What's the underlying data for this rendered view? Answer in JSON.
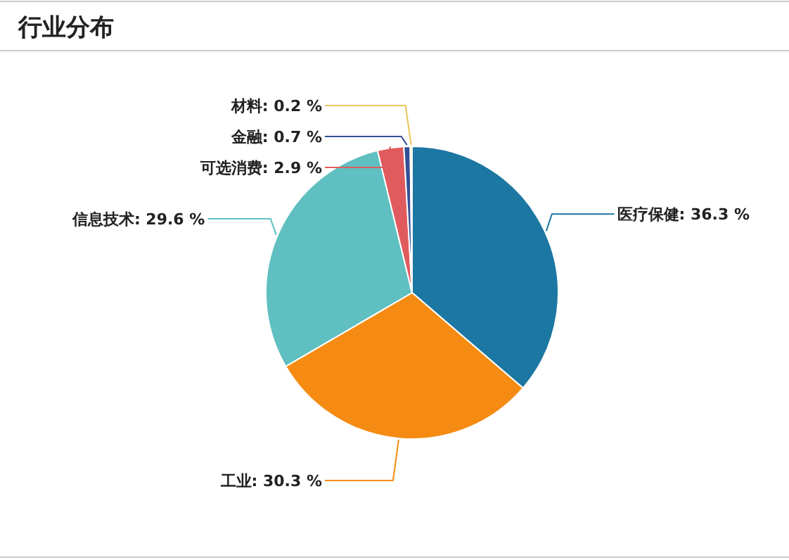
{
  "chart_data": {
    "type": "pie",
    "title": "行业分布",
    "categories": [
      "医疗保健",
      "工业",
      "信息技术",
      "可选消费",
      "金融",
      "材料"
    ],
    "values": [
      36.3,
      30.3,
      29.6,
      2.9,
      0.7,
      0.2
    ],
    "value_labels": [
      "36.3 %",
      "30.3 %",
      "29.6 %",
      "2.9 %",
      "0.7 %",
      "0.2 %"
    ],
    "colors": [
      "#1c77a2",
      "#f58b12",
      "#60bfc0",
      "#e05b5e",
      "#334f96",
      "#e9c65a"
    ]
  }
}
